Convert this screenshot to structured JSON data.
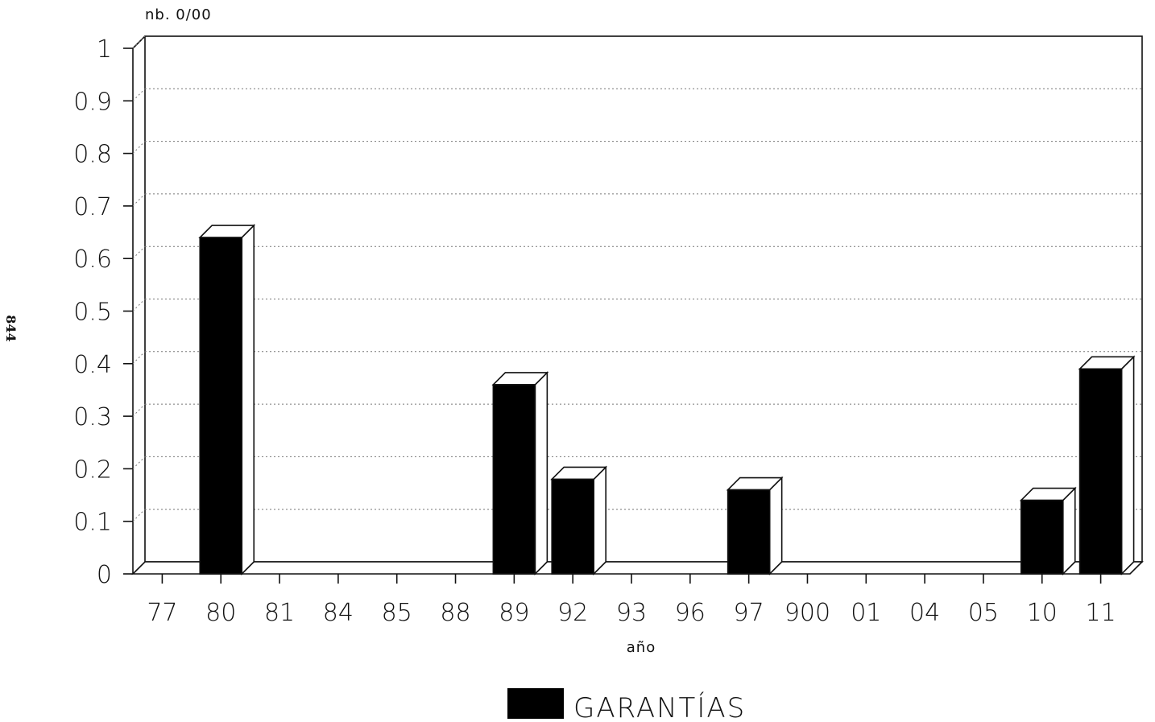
{
  "page_number": "844",
  "chart_data": {
    "type": "bar",
    "categories": [
      "77",
      "80",
      "81",
      "84",
      "85",
      "88",
      "89",
      "92",
      "93",
      "96",
      "97",
      "900",
      "01",
      "04",
      "05",
      "10",
      "11"
    ],
    "series": [
      {
        "name": "GARANTÍAS",
        "values": [
          0,
          0.64,
          0,
          0,
          0,
          0,
          0.36,
          0.18,
          0,
          0,
          0.16,
          0,
          0,
          0,
          0,
          0.14,
          0.39
        ]
      }
    ],
    "ylabel": "nb. 0/00",
    "xlabel": "año",
    "ylim": [
      0,
      1
    ],
    "yticks": [
      "0",
      "0.1",
      "0.2",
      "0.3",
      "0.4",
      "0.5",
      "0.6",
      "0.7",
      "0.8",
      "0.9",
      "1"
    ],
    "grid": true,
    "legend": "bottom-center",
    "colors": {
      "bar": "#000000",
      "grid": "#777777",
      "frame": "#111111"
    }
  }
}
